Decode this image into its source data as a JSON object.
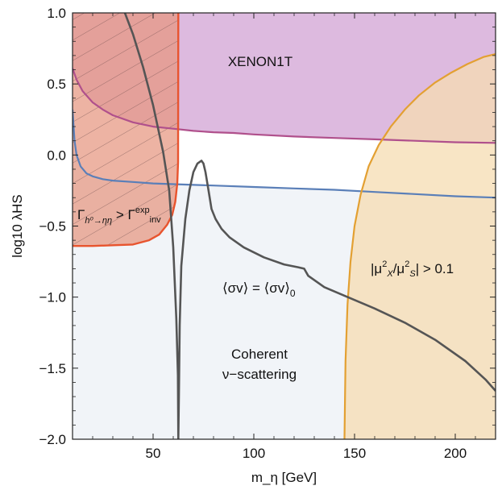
{
  "chart_data": {
    "type": "line",
    "xlabel": "m_η [GeV]",
    "ylabel": "log10 λHS",
    "xlim": [
      10,
      220
    ],
    "ylim": [
      -2.0,
      1.0
    ],
    "x_ticks": [
      50,
      100,
      150,
      200
    ],
    "x_tick_labels": [
      "50",
      "100",
      "150",
      "200"
    ],
    "y_ticks": [
      -2.0,
      -1.5,
      -1.0,
      -0.5,
      0.0,
      0.5,
      1.0
    ],
    "y_tick_labels": [
      "−2.0",
      "−1.5",
      "−1.0",
      "−0.5",
      "0.0",
      "0.5",
      "1.0"
    ],
    "grid": false,
    "colors": {
      "relic": "#555555",
      "xenon_line": "#b0508c",
      "xenon_fill": "#d9b3dc",
      "coherent_line": "#5a7fb8",
      "coherent_fill": "#f1f4f8",
      "higgs_line": "#e8542e",
      "higgs_fill": "#e6957f",
      "mixing_line": "#e3a032",
      "mixing_fill": "#f6dcb2"
    },
    "annotations": {
      "xenon": "XENON1T",
      "higgs_main": "Γ",
      "higgs_sub": "h⁰→ηη",
      "higgs_gt": " > Γ",
      "higgs_sup": "exp",
      "higgs_sub2": "inv",
      "relic_a": "⟨σv⟩ = ⟨σv⟩",
      "relic_sub": "0",
      "mixing_a": "|μ",
      "mixing_x": "X",
      "mixing_b": "/μ",
      "mixing_s": "S",
      "mixing_c": "| > 0.1",
      "sq": "2",
      "coherent_1": "Coherent",
      "coherent_2": "ν−scattering"
    },
    "series": [
      {
        "key": "relic",
        "x": [
          36,
          40,
          45,
          50,
          55,
          58,
          60,
          61.5,
          62.3,
          62.5,
          62.8,
          63.2,
          64,
          66,
          68,
          70,
          72,
          74,
          75,
          76,
          77.5,
          79,
          81,
          84,
          88,
          95,
          105,
          115,
          122,
          125,
          127,
          135,
          145,
          160,
          175,
          190,
          205,
          215,
          220
        ],
        "y": [
          1.0,
          0.85,
          0.62,
          0.35,
          0.02,
          -0.25,
          -0.65,
          -1.15,
          -1.55,
          -2.0,
          -1.7,
          -1.2,
          -0.78,
          -0.45,
          -0.25,
          -0.12,
          -0.06,
          -0.04,
          -0.06,
          -0.12,
          -0.25,
          -0.38,
          -0.45,
          -0.52,
          -0.58,
          -0.65,
          -0.72,
          -0.77,
          -0.79,
          -0.8,
          -0.85,
          -0.93,
          -0.99,
          -1.08,
          -1.18,
          -1.3,
          -1.45,
          -1.58,
          -1.66
        ]
      },
      {
        "key": "xenon",
        "x": [
          10,
          12,
          15,
          20,
          25,
          30,
          40,
          50,
          60,
          70,
          80,
          90,
          100,
          120,
          140,
          160,
          180,
          200,
          220
        ],
        "y": [
          0.61,
          0.53,
          0.45,
          0.37,
          0.32,
          0.28,
          0.23,
          0.2,
          0.185,
          0.17,
          0.16,
          0.155,
          0.145,
          0.13,
          0.12,
          0.11,
          0.1,
          0.09,
          0.085
        ]
      },
      {
        "key": "coherent",
        "x": [
          10,
          11,
          12,
          14,
          17,
          20,
          25,
          30,
          40,
          50,
          60,
          80,
          100,
          120,
          140,
          160,
          180,
          200,
          220
        ],
        "y": [
          0.32,
          0.1,
          0.0,
          -0.08,
          -0.13,
          -0.15,
          -0.17,
          -0.18,
          -0.19,
          -0.2,
          -0.205,
          -0.215,
          -0.225,
          -0.235,
          -0.245,
          -0.26,
          -0.275,
          -0.29,
          -0.3
        ]
      },
      {
        "key": "higgs",
        "x": [
          10,
          20,
          30,
          40,
          48,
          53,
          57,
          59.5,
          61,
          62,
          62.4,
          62.5
        ],
        "y": [
          -0.64,
          -0.64,
          -0.635,
          -0.63,
          -0.6,
          -0.56,
          -0.49,
          -0.42,
          -0.33,
          -0.2,
          -0.05,
          1.0
        ]
      },
      {
        "key": "mixing",
        "x": [
          145,
          145.5,
          146.5,
          148,
          150,
          153,
          157,
          162,
          168,
          175,
          182,
          190,
          198,
          206,
          214,
          220
        ],
        "y": [
          -2.0,
          -1.45,
          -1.05,
          -0.75,
          -0.5,
          -0.28,
          -0.08,
          0.07,
          0.2,
          0.32,
          0.42,
          0.51,
          0.58,
          0.64,
          0.69,
          0.71
        ]
      }
    ]
  }
}
